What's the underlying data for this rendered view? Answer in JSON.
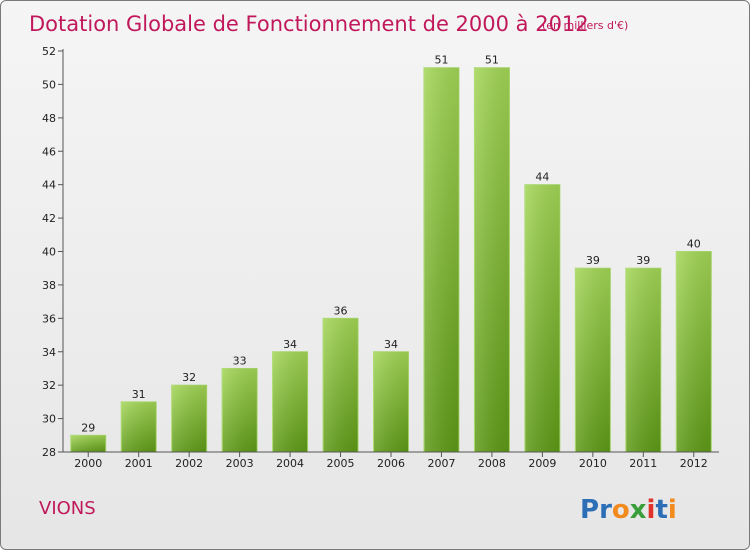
{
  "chart_data": {
    "type": "bar",
    "title": "Dotation Globale de Fonctionnement de 2000 à 2012",
    "subtitle": "(en milliers d'€)",
    "categories": [
      "2000",
      "2001",
      "2002",
      "2003",
      "2004",
      "2005",
      "2006",
      "2007",
      "2008",
      "2009",
      "2010",
      "2011",
      "2012"
    ],
    "values": [
      29,
      31,
      32,
      33,
      34,
      36,
      34,
      51,
      51,
      44,
      39,
      39,
      40
    ],
    "ylim": [
      28,
      52
    ],
    "yticks": [
      28,
      30,
      32,
      34,
      36,
      38,
      40,
      42,
      44,
      46,
      48,
      50,
      52
    ],
    "grid": false,
    "bar_color": "#7ab82e"
  },
  "commune": "VIONS",
  "logo": {
    "text": "Proxiti"
  }
}
